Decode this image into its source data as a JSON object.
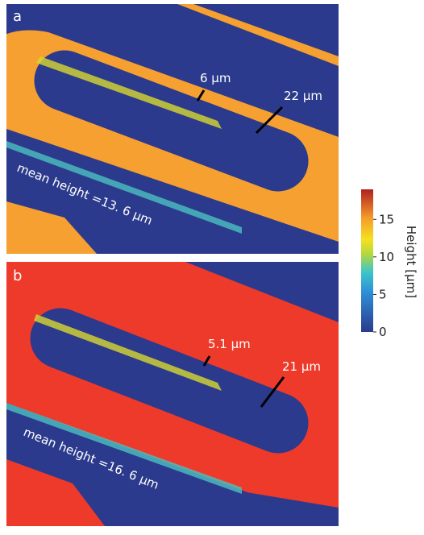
{
  "panels": [
    {
      "label": "a",
      "annotations": [
        "6 µm",
        "22 µm"
      ],
      "mean_label": "mean height =13. 6 µm"
    },
    {
      "label": "b",
      "annotations": [
        "5.1 µm",
        "21 µm"
      ],
      "mean_label": "mean height =16. 6 µm"
    }
  ],
  "colorbar": {
    "label": "Height [µm]",
    "lim": [
      0,
      19
    ],
    "ticks": [
      0,
      5,
      10,
      15
    ]
  }
}
